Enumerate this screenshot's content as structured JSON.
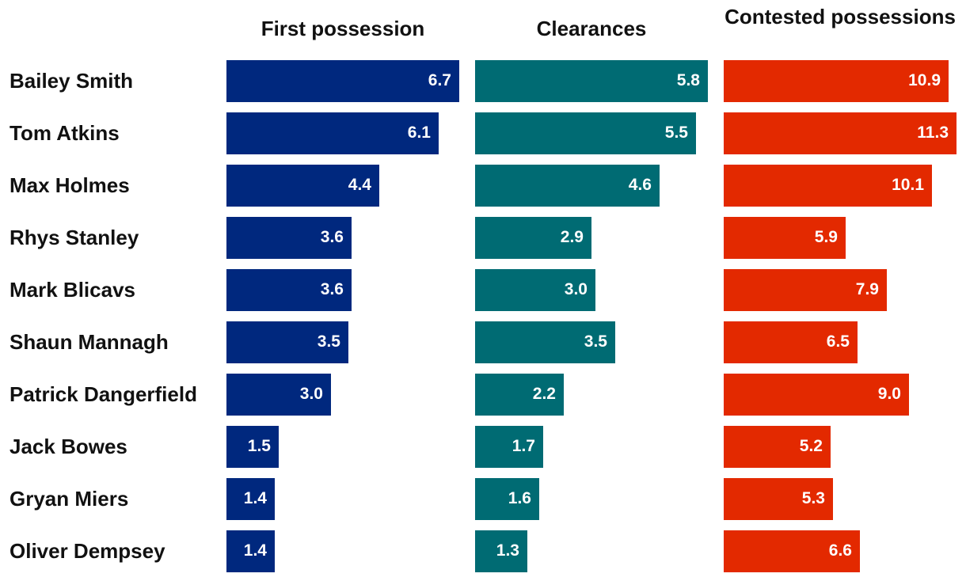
{
  "chart_data": {
    "type": "bar",
    "orientation": "horizontal",
    "players": [
      "Bailey Smith",
      "Tom Atkins",
      "Max Holmes",
      "Rhys Stanley",
      "Mark Blicavs",
      "Shaun Mannagh",
      "Patrick Dangerfield",
      "Jack Bowes",
      "Gryan Miers",
      "Oliver Dempsey"
    ],
    "panels": [
      {
        "title": "First possession",
        "color": "#00287e",
        "values": [
          6.7,
          6.1,
          4.4,
          3.6,
          3.6,
          3.5,
          3.0,
          1.5,
          1.4,
          1.4
        ],
        "labels": [
          "6.7",
          "6.1",
          "4.4",
          "3.6",
          "3.6",
          "3.5",
          "3.0",
          "1.5",
          "1.4",
          "1.4"
        ],
        "xlim": [
          0,
          6.7
        ]
      },
      {
        "title": "Clearances",
        "color": "#006b73",
        "values": [
          5.8,
          5.5,
          4.6,
          2.9,
          3.0,
          3.5,
          2.2,
          1.7,
          1.6,
          1.3
        ],
        "labels": [
          "5.8",
          "5.5",
          "4.6",
          "2.9",
          "3.0",
          "3.5",
          "2.2",
          "1.7",
          "1.6",
          "1.3"
        ],
        "xlim": [
          0,
          5.8
        ]
      },
      {
        "title": "Contested possessions",
        "color": "#e32900",
        "values": [
          10.9,
          11.3,
          10.1,
          5.9,
          7.9,
          6.5,
          9.0,
          5.2,
          5.3,
          6.6
        ],
        "labels": [
          "10.9",
          "11.3",
          "10.1",
          "5.9",
          "7.9",
          "6.5",
          "9.0",
          "5.2",
          "5.3",
          "6.6"
        ],
        "xlim": [
          0,
          11.3
        ]
      }
    ]
  }
}
